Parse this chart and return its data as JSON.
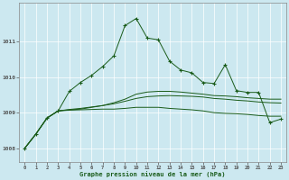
{
  "xlabel": "Graphe pression niveau de la mer (hPa)",
  "bg_color": "#cce8f0",
  "grid_color": "#aad4e0",
  "line_color": "#1a5c1a",
  "xlim": [
    -0.5,
    23.5
  ],
  "ylim": [
    1007.6,
    1012.1
  ],
  "xticks": [
    0,
    1,
    2,
    3,
    4,
    5,
    6,
    7,
    8,
    9,
    10,
    11,
    12,
    13,
    14,
    15,
    16,
    17,
    18,
    19,
    20,
    21,
    22,
    23
  ],
  "yticks": [
    1008,
    1009,
    1010,
    1011
  ],
  "hours": [
    0,
    1,
    2,
    3,
    4,
    5,
    6,
    7,
    8,
    9,
    10,
    11,
    12,
    13,
    14,
    15,
    16,
    17,
    18,
    19,
    20,
    21,
    22,
    23
  ],
  "pressure_main": [
    1008.0,
    1008.4,
    1008.85,
    1009.05,
    1009.6,
    1009.85,
    1010.05,
    1010.3,
    1010.6,
    1011.45,
    1011.65,
    1011.1,
    1011.05,
    1010.45,
    1010.2,
    1010.12,
    1009.85,
    1009.82,
    1010.35,
    1009.62,
    1009.57,
    1009.57,
    1008.72,
    1008.82
  ],
  "pressure_smooth1": [
    1008.0,
    1008.4,
    1008.85,
    1009.05,
    1009.08,
    1009.1,
    1009.15,
    1009.2,
    1009.28,
    1009.38,
    1009.52,
    1009.58,
    1009.6,
    1009.6,
    1009.58,
    1009.55,
    1009.52,
    1009.48,
    1009.47,
    1009.45,
    1009.42,
    1009.4,
    1009.38,
    1009.38
  ],
  "pressure_smooth2": [
    1008.0,
    1008.4,
    1008.85,
    1009.05,
    1009.07,
    1009.08,
    1009.09,
    1009.1,
    1009.1,
    1009.12,
    1009.15,
    1009.15,
    1009.15,
    1009.12,
    1009.1,
    1009.08,
    1009.05,
    1009.0,
    1008.98,
    1008.97,
    1008.95,
    1008.92,
    1008.9,
    1008.9
  ],
  "pressure_smooth3": [
    1008.0,
    1008.4,
    1008.85,
    1009.05,
    1009.09,
    1009.12,
    1009.16,
    1009.2,
    1009.25,
    1009.32,
    1009.4,
    1009.45,
    1009.47,
    1009.48,
    1009.47,
    1009.46,
    1009.44,
    1009.4,
    1009.38,
    1009.35,
    1009.33,
    1009.3,
    1009.28,
    1009.27
  ]
}
